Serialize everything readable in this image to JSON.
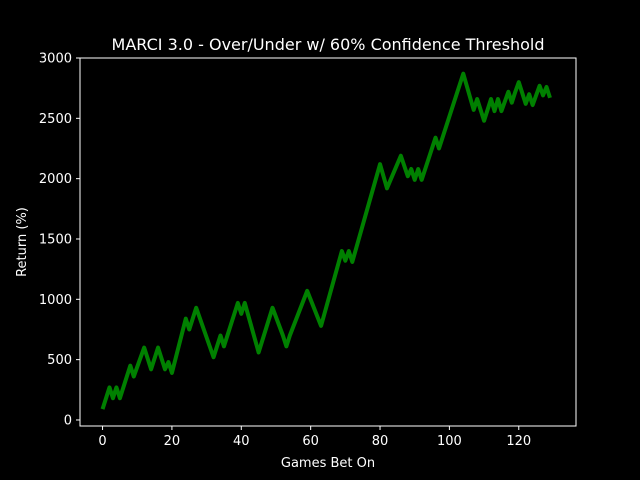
{
  "chart_data": {
    "type": "line",
    "title": "MARCI 3.0 - Over/Under w/ 60% Confidence Threshold",
    "xlabel": "Games Bet On",
    "ylabel": "Return (%)",
    "xlim": [
      -6.5,
      136.5
    ],
    "ylim": [
      -50,
      3000
    ],
    "xticks": [
      0,
      20,
      40,
      60,
      80,
      100,
      120
    ],
    "yticks": [
      0,
      500,
      1000,
      1500,
      2000,
      2500,
      3000
    ],
    "grid": false,
    "background": "#000000",
    "foreground": "#ffffff",
    "series": [
      {
        "color": "#008000",
        "x": [
          0,
          2,
          3,
          4,
          5,
          8,
          9,
          12,
          14,
          16,
          18,
          19,
          20,
          24,
          25,
          27,
          32,
          34,
          35,
          39,
          40,
          41,
          45,
          49,
          52,
          53,
          54,
          59,
          63,
          69,
          70,
          71,
          72,
          80,
          82,
          86,
          88,
          89,
          90,
          91,
          92,
          96,
          97,
          104,
          107,
          108,
          110,
          112,
          113,
          114,
          115,
          117,
          118,
          119,
          120,
          122,
          123,
          124,
          126,
          127,
          128,
          129
        ],
        "y": [
          90,
          270,
          180,
          270,
          180,
          450,
          360,
          600,
          420,
          600,
          420,
          480,
          390,
          840,
          750,
          930,
          520,
          700,
          610,
          970,
          880,
          970,
          560,
          930,
          700,
          610,
          700,
          1070,
          780,
          1400,
          1320,
          1400,
          1310,
          2120,
          1920,
          2190,
          2020,
          2080,
          1990,
          2080,
          1990,
          2340,
          2250,
          2870,
          2570,
          2660,
          2480,
          2660,
          2560,
          2660,
          2560,
          2720,
          2630,
          2720,
          2800,
          2620,
          2700,
          2610,
          2770,
          2690,
          2760,
          2670
        ]
      }
    ]
  }
}
